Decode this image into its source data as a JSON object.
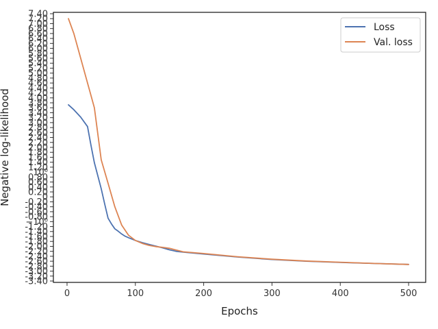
{
  "chart_data": {
    "type": "line",
    "xlabel": "Epochs",
    "ylabel": "Negative log-likelihood",
    "xlim": [
      -20,
      525
    ],
    "x_ticks": [
      0,
      100,
      200,
      300,
      400,
      500
    ],
    "x_tick_labels": [
      "0",
      "100",
      "200",
      "300",
      "400",
      "500"
    ],
    "y_ticks": [
      {
        "label": "7.40",
        "v": 7.4
      },
      {
        "label": "7.20",
        "v": 7.2
      },
      {
        "label": "7.00",
        "v": 7.0
      },
      {
        "label": "6.80",
        "v": 6.8
      },
      {
        "label": "6.60",
        "v": 6.6
      },
      {
        "label": "6.40",
        "v": 6.4
      },
      {
        "label": "6.20",
        "v": 6.2
      },
      {
        "label": "6.00",
        "v": 6.0
      },
      {
        "label": "5.80",
        "v": 5.8
      },
      {
        "label": "5.60",
        "v": 5.6
      },
      {
        "label": "5.40",
        "v": 5.4
      },
      {
        "label": "5.20",
        "v": 5.2
      },
      {
        "label": "5.00",
        "v": 5.0
      },
      {
        "label": "4.80",
        "v": 4.8
      },
      {
        "label": "4.60",
        "v": 4.6
      },
      {
        "label": "4.40",
        "v": 4.4
      },
      {
        "label": "4.20",
        "v": 4.2
      },
      {
        "label": "4.00",
        "v": 4.0
      },
      {
        "label": "3.80",
        "v": 3.8
      },
      {
        "label": "3.60",
        "v": 3.6
      },
      {
        "label": "3.40",
        "v": 3.4
      },
      {
        "label": "3.20",
        "v": 3.2
      },
      {
        "label": "3.00",
        "v": 3.0
      },
      {
        "label": "2.80",
        "v": 2.8
      },
      {
        "label": "2.60",
        "v": 2.6
      },
      {
        "label": "2.40",
        "v": 2.4
      },
      {
        "label": "2.20",
        "v": 2.2
      },
      {
        "label": "2.00",
        "v": 2.0
      },
      {
        "label": "1.80",
        "v": 1.8
      },
      {
        "label": "1.60",
        "v": 1.6
      },
      {
        "label": "1.40",
        "v": 1.4
      },
      {
        "label": "1.20",
        "v": 1.2
      },
      {
        "label": "10⁰",
        "v": 1.0
      },
      {
        "label": "0.80",
        "v": 0.8
      },
      {
        "label": "0.60",
        "v": 0.6
      },
      {
        "label": "0.40",
        "v": 0.4
      },
      {
        "label": "0.20",
        "v": 0.2
      },
      {
        "label": "0",
        "v": 0
      },
      {
        "label": "-0.20",
        "v": -0.2
      },
      {
        "label": "-0.40",
        "v": -0.4
      },
      {
        "label": "-0.60",
        "v": -0.6
      },
      {
        "label": "-0.80",
        "v": -0.8
      },
      {
        "label": "−10⁰",
        "v": -1.0
      },
      {
        "label": "-1.20",
        "v": -1.2
      },
      {
        "label": "-1.40",
        "v": -1.4
      },
      {
        "label": "-1.60",
        "v": -1.6
      },
      {
        "label": "-1.80",
        "v": -1.8
      },
      {
        "label": "-2.00",
        "v": -2.0
      },
      {
        "label": "-2.20",
        "v": -2.2
      },
      {
        "label": "-2.40",
        "v": -2.4
      },
      {
        "label": "-2.60",
        "v": -2.6
      },
      {
        "label": "-2.80",
        "v": -2.8
      },
      {
        "label": "-3.00",
        "v": -3.0
      },
      {
        "label": "-3.20",
        "v": -3.2
      },
      {
        "label": "-3.40",
        "v": -3.4
      }
    ],
    "series": [
      {
        "name": "Loss",
        "color": "#4c72b0",
        "x": [
          2,
          10,
          20,
          30,
          35,
          40,
          50,
          55,
          60,
          65,
          70,
          75,
          80,
          85,
          90,
          100,
          110,
          120,
          130,
          140,
          150,
          160,
          170,
          200,
          250,
          300,
          350,
          400,
          450,
          500
        ],
        "y": [
          3.72,
          3.52,
          3.22,
          2.84,
          2.09,
          1.38,
          0.33,
          -0.28,
          -0.86,
          -1.09,
          -1.29,
          -1.39,
          -1.5,
          -1.59,
          -1.65,
          -1.76,
          -1.85,
          -1.92,
          -1.99,
          -2.06,
          -2.14,
          -2.2,
          -2.23,
          -2.31,
          -2.43,
          -2.53,
          -2.6,
          -2.65,
          -2.69,
          -2.73
        ]
      },
      {
        "name": "Val. loss",
        "color": "#dd8452",
        "x": [
          2,
          10,
          20,
          30,
          40,
          50,
          60,
          70,
          80,
          90,
          100,
          110,
          120,
          130,
          140,
          150,
          160,
          170,
          200,
          250,
          300,
          350,
          400,
          450,
          500
        ],
        "y": [
          7.2,
          6.6,
          5.6,
          4.6,
          3.6,
          1.5,
          0.55,
          -0.4,
          -1.14,
          -1.55,
          -1.76,
          -1.88,
          -1.96,
          -2.01,
          -2.04,
          -2.08,
          -2.15,
          -2.22,
          -2.29,
          -2.42,
          -2.52,
          -2.59,
          -2.64,
          -2.69,
          -2.73
        ]
      }
    ],
    "legend": {
      "position": "top-right",
      "entries": [
        "Loss",
        "Val. loss"
      ]
    },
    "grid": false
  }
}
